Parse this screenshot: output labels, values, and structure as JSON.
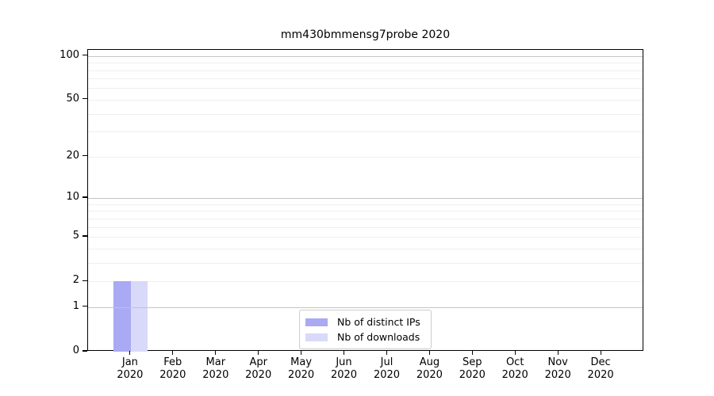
{
  "chart_data": {
    "type": "bar",
    "title": "mm430bmmensg7probe 2020",
    "x_months": [
      "Jan",
      "Feb",
      "Mar",
      "Apr",
      "May",
      "Jun",
      "Jul",
      "Aug",
      "Sep",
      "Oct",
      "Nov",
      "Dec"
    ],
    "x_year": "2020",
    "series": [
      {
        "name": "Nb of distinct IPs",
        "color": "#a9a9f4",
        "values": [
          2,
          0,
          0,
          0,
          0,
          0,
          0,
          0,
          0,
          0,
          0,
          0
        ]
      },
      {
        "name": "Nb of downloads",
        "color": "#d9d9f9",
        "values": [
          2,
          0,
          0,
          0,
          0,
          0,
          0,
          0,
          0,
          0,
          0,
          0
        ]
      }
    ],
    "y_scale": "log1p",
    "ylim": [
      0,
      110
    ],
    "y_tick_labels": [
      100,
      50,
      20,
      10,
      5,
      2,
      1,
      0
    ],
    "y_major_gridlines": [
      1,
      10,
      100
    ],
    "y_minor_gridlines": [
      2,
      3,
      4,
      5,
      6,
      7,
      8,
      9,
      20,
      30,
      40,
      50,
      60,
      70,
      80,
      90
    ],
    "grid": true,
    "legend_position": "lower center",
    "colors": {
      "major_grid": "#c4c4c4",
      "minor_grid": "#efefef",
      "spine": "#000000",
      "text": "#000000"
    }
  }
}
